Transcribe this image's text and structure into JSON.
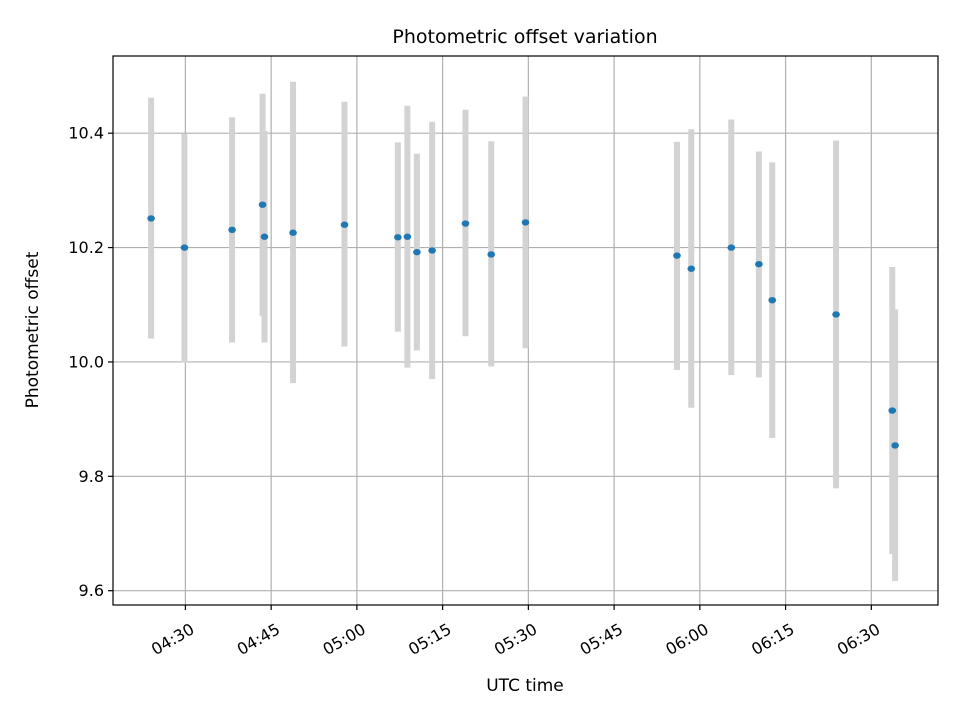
{
  "chart_data": {
    "type": "scatter",
    "title": "Photometric offset variation",
    "xlabel": "UTC time",
    "ylabel": "Photometric offset",
    "xlim": [
      "04:17:20",
      "06:41:40"
    ],
    "ylim": [
      9.575,
      10.535
    ],
    "grid": true,
    "x_ticks": [
      "04:30",
      "04:45",
      "05:00",
      "05:15",
      "05:30",
      "05:45",
      "06:00",
      "06:15",
      "06:30"
    ],
    "y_ticks": [
      "9.6",
      "9.8",
      "10.0",
      "10.2",
      "10.4"
    ],
    "colors": {
      "point": "#1f77b4",
      "errorbar": "#d3d3d3",
      "grid": "#b0b0b0",
      "axes": "#000000"
    },
    "points": [
      {
        "x": "04:24:00",
        "y": 10.251,
        "ylow": 10.041,
        "yhigh": 10.462
      },
      {
        "x": "04:29:50",
        "y": 10.2,
        "ylow": 9.999,
        "yhigh": 10.399
      },
      {
        "x": "04:38:10",
        "y": 10.231,
        "ylow": 10.034,
        "yhigh": 10.428
      },
      {
        "x": "04:43:30",
        "y": 10.275,
        "ylow": 10.08,
        "yhigh": 10.469
      },
      {
        "x": "04:43:50",
        "y": 10.219,
        "ylow": 10.034,
        "yhigh": 10.404
      },
      {
        "x": "04:48:50",
        "y": 10.226,
        "ylow": 9.963,
        "yhigh": 10.49
      },
      {
        "x": "04:57:50",
        "y": 10.24,
        "ylow": 10.027,
        "yhigh": 10.455
      },
      {
        "x": "05:07:10",
        "y": 10.218,
        "ylow": 10.053,
        "yhigh": 10.384
      },
      {
        "x": "05:08:50",
        "y": 10.219,
        "ylow": 9.99,
        "yhigh": 10.448
      },
      {
        "x": "05:10:30",
        "y": 10.192,
        "ylow": 10.02,
        "yhigh": 10.364
      },
      {
        "x": "05:13:10",
        "y": 10.195,
        "ylow": 9.97,
        "yhigh": 10.42
      },
      {
        "x": "05:19:00",
        "y": 10.242,
        "ylow": 10.045,
        "yhigh": 10.441
      },
      {
        "x": "05:23:30",
        "y": 10.188,
        "ylow": 9.992,
        "yhigh": 10.386
      },
      {
        "x": "05:29:30",
        "y": 10.244,
        "ylow": 10.024,
        "yhigh": 10.464
      },
      {
        "x": "05:56:00",
        "y": 10.186,
        "ylow": 9.986,
        "yhigh": 10.385
      },
      {
        "x": "05:58:30",
        "y": 10.163,
        "ylow": 9.92,
        "yhigh": 10.407
      },
      {
        "x": "06:05:30",
        "y": 10.2,
        "ylow": 9.977,
        "yhigh": 10.424
      },
      {
        "x": "06:10:20",
        "y": 10.171,
        "ylow": 9.973,
        "yhigh": 10.368
      },
      {
        "x": "06:12:40",
        "y": 10.108,
        "ylow": 9.867,
        "yhigh": 10.349
      },
      {
        "x": "06:23:50",
        "y": 10.083,
        "ylow": 9.779,
        "yhigh": 10.387
      },
      {
        "x": "06:33:40",
        "y": 9.915,
        "ylow": 9.664,
        "yhigh": 10.166
      },
      {
        "x": "06:34:10",
        "y": 9.854,
        "ylow": 9.617,
        "yhigh": 10.092
      }
    ]
  }
}
